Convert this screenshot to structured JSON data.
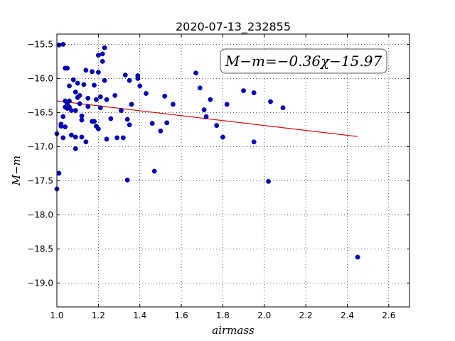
{
  "chart_data": {
    "type": "scatter",
    "title": "2020-07-13_232855",
    "xlabel": "airmass",
    "ylabel": "M−m",
    "xlim": [
      1.0,
      2.7
    ],
    "ylim": [
      -15.35,
      -19.35
    ],
    "y_inverted": true,
    "x_ticks": [
      1.0,
      1.2,
      1.4,
      1.6,
      1.8,
      2.0,
      2.2,
      2.4,
      2.6
    ],
    "x_tick_labels": [
      "1.0",
      "1.2",
      "1.4",
      "1.6",
      "1.8",
      "2.0",
      "2.2",
      "2.4",
      "2.6"
    ],
    "y_ticks": [
      -15.5,
      -16.0,
      -16.5,
      -17.0,
      -17.5,
      -18.0,
      -18.5,
      -19.0
    ],
    "y_tick_labels": [
      "−15.5",
      "−16.0",
      "−16.5",
      "−17.0",
      "−17.5",
      "−18.0",
      "−18.5",
      "−19.0"
    ],
    "grid": true,
    "annotation": "M−m=−0.36χ−15.97",
    "annotation_position": "top-right",
    "fit": {
      "slope": -0.36,
      "intercept": -15.97,
      "x_range": [
        1.0,
        2.45
      ],
      "color": "#e00000"
    },
    "point_color": "#0000cc",
    "points": [
      [
        1.0,
        -16.81
      ],
      [
        1.0,
        -17.62
      ],
      [
        1.01,
        -17.39
      ],
      [
        1.01,
        -15.51
      ],
      [
        1.02,
        -16.67
      ],
      [
        1.02,
        -16.7
      ],
      [
        1.03,
        -15.5
      ],
      [
        1.03,
        -16.56
      ],
      [
        1.03,
        -16.87
      ],
      [
        1.04,
        -15.85
      ],
      [
        1.04,
        -16.33
      ],
      [
        1.04,
        -16.42
      ],
      [
        1.04,
        -16.71
      ],
      [
        1.05,
        -15.85
      ],
      [
        1.05,
        -16.44
      ],
      [
        1.05,
        -16.38
      ],
      [
        1.06,
        -16.11
      ],
      [
        1.06,
        -16.33
      ],
      [
        1.06,
        -16.42
      ],
      [
        1.07,
        -16.47
      ],
      [
        1.07,
        -16.83
      ],
      [
        1.08,
        -16.02
      ],
      [
        1.09,
        -16.47
      ],
      [
        1.09,
        -16.2
      ],
      [
        1.09,
        -16.86
      ],
      [
        1.09,
        -17.03
      ],
      [
        1.1,
        -16.07
      ],
      [
        1.1,
        -16.28
      ],
      [
        1.11,
        -16.25
      ],
      [
        1.11,
        -16.37
      ],
      [
        1.12,
        -16.55
      ],
      [
        1.12,
        -16.61
      ],
      [
        1.12,
        -16.86
      ],
      [
        1.13,
        -16.09
      ],
      [
        1.14,
        -15.88
      ],
      [
        1.14,
        -16.93
      ],
      [
        1.15,
        -16.41
      ],
      [
        1.15,
        -16.29
      ],
      [
        1.17,
        -15.9
      ],
      [
        1.17,
        -16.63
      ],
      [
        1.18,
        -16.63
      ],
      [
        1.18,
        -16.1
      ],
      [
        1.19,
        -16.7
      ],
      [
        1.19,
        -16.31
      ],
      [
        1.2,
        -15.66
      ],
      [
        1.2,
        -15.91
      ],
      [
        1.2,
        -16.74
      ],
      [
        1.21,
        -16.27
      ],
      [
        1.21,
        -16.43
      ],
      [
        1.22,
        -15.64
      ],
      [
        1.22,
        -15.75
      ],
      [
        1.23,
        -15.55
      ],
      [
        1.23,
        -16.03
      ],
      [
        1.24,
        -16.89
      ],
      [
        1.24,
        -16.31
      ],
      [
        1.26,
        -16.59
      ],
      [
        1.28,
        -16.25
      ],
      [
        1.29,
        -16.87
      ],
      [
        1.31,
        -16.47
      ],
      [
        1.32,
        -16.87
      ],
      [
        1.33,
        -15.95
      ],
      [
        1.34,
        -16.6
      ],
      [
        1.34,
        -17.49
      ],
      [
        1.35,
        -16.03
      ],
      [
        1.35,
        -16.68
      ],
      [
        1.36,
        -16.38
      ],
      [
        1.39,
        -16.0
      ],
      [
        1.39,
        -15.96
      ],
      [
        1.4,
        -16.11
      ],
      [
        1.43,
        -16.22
      ],
      [
        1.46,
        -16.66
      ],
      [
        1.47,
        -17.36
      ],
      [
        1.5,
        -16.77
      ],
      [
        1.52,
        -16.26
      ],
      [
        1.53,
        -16.65
      ],
      [
        1.56,
        -16.38
      ],
      [
        1.67,
        -15.92
      ],
      [
        1.69,
        -16.14
      ],
      [
        1.71,
        -16.46
      ],
      [
        1.72,
        -16.56
      ],
      [
        1.74,
        -16.31
      ],
      [
        1.77,
        -16.69
      ],
      [
        1.8,
        -16.86
      ],
      [
        1.82,
        -16.38
      ],
      [
        1.9,
        -16.18
      ],
      [
        1.95,
        -16.21
      ],
      [
        1.95,
        -16.93
      ],
      [
        2.02,
        -17.51
      ],
      [
        2.03,
        -16.34
      ],
      [
        2.09,
        -16.43
      ],
      [
        2.45,
        -18.62
      ]
    ]
  }
}
